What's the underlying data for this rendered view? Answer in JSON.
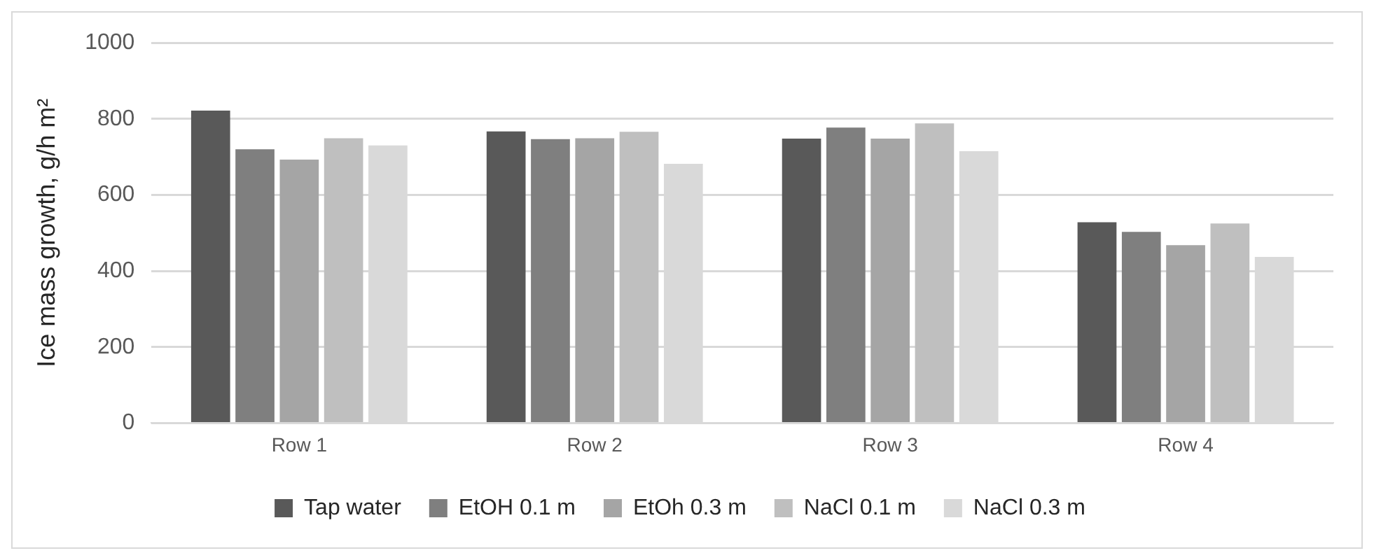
{
  "chart_data": {
    "type": "bar",
    "ylabel": "Ice mass growth, g/h m²",
    "categories": [
      "Row 1",
      "Row 2",
      "Row 3",
      "Row 4"
    ],
    "series": [
      {
        "name": "Tap water",
        "color": "#595959",
        "values": [
          822,
          767,
          748,
          528
        ]
      },
      {
        "name": "EtOH 0.1 m",
        "color": "#7f7f7f",
        "values": [
          720,
          747,
          777,
          503
        ]
      },
      {
        "name": "EtOh 0.3 m",
        "color": "#a5a5a5",
        "values": [
          693,
          749,
          748,
          468
        ]
      },
      {
        "name": "NaCl 0.1 m",
        "color": "#bfbfbf",
        "values": [
          749,
          766,
          788,
          525
        ]
      },
      {
        "name": "NaCl 0.3 m",
        "color": "#d9d9d9",
        "values": [
          730,
          682,
          715,
          437
        ]
      }
    ],
    "ylim": [
      0,
      1000
    ],
    "yticks": [
      0,
      200,
      400,
      600,
      800,
      1000
    ],
    "grid": "y",
    "legend": "bottom"
  }
}
